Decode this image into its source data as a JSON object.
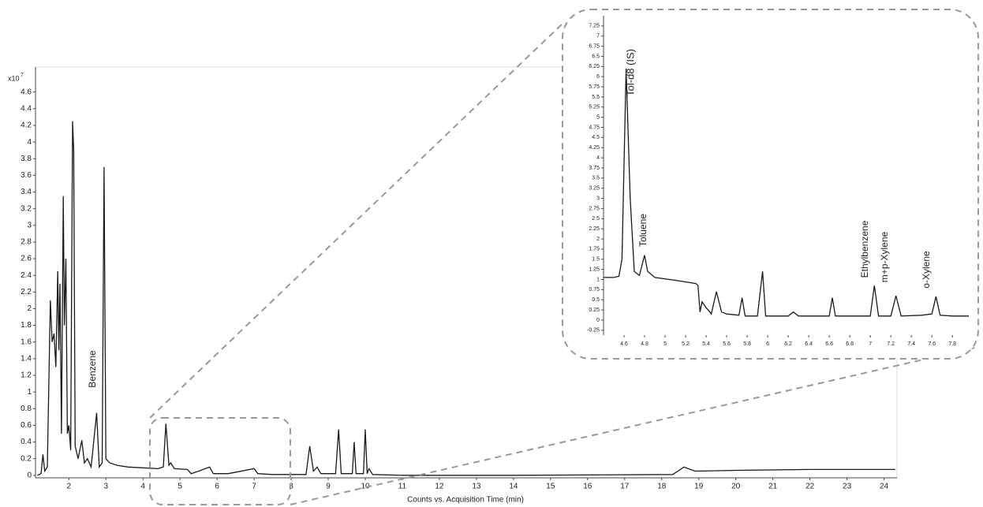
{
  "chart_data": [
    {
      "type": "line",
      "x_label": "Counts vs. Acquisition Time (min)",
      "y_multiplier": "x10",
      "y_multiplier_exponent": "7",
      "color": "#1a1a1a",
      "grid": false,
      "x": [
        1.15,
        1.25,
        1.3,
        1.35,
        1.42,
        1.5,
        1.55,
        1.6,
        1.65,
        1.7,
        1.73,
        1.76,
        1.8,
        1.85,
        1.88,
        1.92,
        1.96,
        2.0,
        2.05,
        2.1,
        2.13,
        2.17,
        2.25,
        2.35,
        2.42,
        2.5,
        2.6,
        2.75,
        2.82,
        2.9,
        2.95,
        3.0,
        3.1,
        3.3,
        3.6,
        4.0,
        4.4,
        4.55,
        4.62,
        4.7,
        4.75,
        4.85,
        5.2,
        5.3,
        5.5,
        5.8,
        5.9,
        6.3,
        7.0,
        7.1,
        7.5,
        8.4,
        8.5,
        8.6,
        8.7,
        8.8,
        9.2,
        9.28,
        9.35,
        9.65,
        9.7,
        9.75,
        9.95,
        10.0,
        10.05,
        10.1,
        10.2,
        11,
        14,
        18.3,
        18.6,
        18.9,
        20,
        22,
        24.3
      ],
      "values": [
        0.0,
        0.02,
        0.25,
        0.05,
        0.1,
        2.1,
        1.6,
        1.7,
        1.3,
        2.45,
        1.5,
        2.3,
        0.5,
        3.35,
        1.8,
        2.6,
        0.5,
        0.6,
        0.3,
        4.25,
        3.9,
        0.35,
        0.2,
        0.42,
        0.15,
        0.2,
        0.1,
        0.75,
        0.1,
        0.15,
        3.7,
        0.2,
        0.15,
        0.12,
        0.1,
        0.09,
        0.08,
        0.1,
        0.62,
        0.12,
        0.15,
        0.08,
        0.07,
        0.02,
        0.05,
        0.1,
        0.02,
        0.02,
        0.08,
        0.02,
        0.01,
        0.01,
        0.35,
        0.05,
        0.1,
        0.02,
        0.02,
        0.55,
        0.02,
        0.02,
        0.4,
        0.02,
        0.02,
        0.55,
        0.02,
        0.08,
        0.01,
        0.0,
        0.0,
        0.01,
        0.1,
        0.05,
        0.06,
        0.07,
        0.07
      ],
      "xlim": [
        1.1,
        24.35
      ],
      "ylim": [
        -0.03,
        4.9
      ],
      "xticks": [
        2,
        3,
        4,
        5,
        6,
        7,
        8,
        9,
        10,
        11,
        12,
        13,
        14,
        15,
        16,
        17,
        18,
        19,
        20,
        21,
        22,
        23,
        24
      ],
      "yticks": [
        0,
        0.2,
        0.4,
        0.6,
        0.8,
        1,
        1.2,
        1.4,
        1.6,
        1.8,
        2,
        2.2,
        2.4,
        2.6,
        2.8,
        3,
        3.2,
        3.4,
        3.6,
        3.8,
        4,
        4.2,
        4.4,
        4.6
      ],
      "annotations": [
        {
          "text": "Benzene",
          "color": "#1a1a1a"
        }
      ]
    },
    {
      "type": "line",
      "color": "#1a1a1a",
      "grid": false,
      "x": [
        4.4,
        4.5,
        4.55,
        4.58,
        4.62,
        4.66,
        4.7,
        4.75,
        4.8,
        4.83,
        4.9,
        5.1,
        5.3,
        5.32,
        5.34,
        5.36,
        5.4,
        5.42,
        5.45,
        5.5,
        5.55,
        5.6,
        5.72,
        5.75,
        5.78,
        5.9,
        5.95,
        5.98,
        6.2,
        6.25,
        6.3,
        6.6,
        6.63,
        6.66,
        7.0,
        7.04,
        7.08,
        7.2,
        7.25,
        7.3,
        7.5,
        7.6,
        7.64,
        7.68,
        7.8,
        7.96
      ],
      "values": [
        1.05,
        1.05,
        1.08,
        1.5,
        6.2,
        3.0,
        1.2,
        1.1,
        1.6,
        1.2,
        1.05,
        0.98,
        0.9,
        0.85,
        0.2,
        0.45,
        0.3,
        0.25,
        0.15,
        0.7,
        0.2,
        0.15,
        0.12,
        0.55,
        0.1,
        0.1,
        1.2,
        0.1,
        0.1,
        0.2,
        0.1,
        0.1,
        0.55,
        0.1,
        0.1,
        0.85,
        0.1,
        0.1,
        0.6,
        0.1,
        0.12,
        0.15,
        0.58,
        0.12,
        0.1,
        0.1
      ],
      "xlim": [
        4.4,
        7.96
      ],
      "ylim": [
        -0.37,
        7.5
      ],
      "xticks": [
        4.6,
        4.8,
        5,
        5.2,
        5.4,
        5.6,
        5.8,
        6,
        6.2,
        6.4,
        6.6,
        6.8,
        7,
        7.2,
        7.4,
        7.6,
        7.8
      ],
      "yticks": [
        -0.25,
        0,
        0.25,
        0.5,
        0.75,
        1,
        1.25,
        1.5,
        1.75,
        2,
        2.25,
        2.5,
        2.75,
        3,
        3.25,
        3.5,
        3.75,
        4,
        4.25,
        4.5,
        4.75,
        5,
        5.25,
        5.5,
        5.75,
        6,
        6.25,
        6.5,
        6.75,
        7,
        7.25
      ],
      "annotations": [
        {
          "text": "Tol-d8 (IS)",
          "color": "#c8403a"
        },
        {
          "text": "Toluene",
          "color": "#1a1a1a"
        },
        {
          "text": "Ethylbenzene",
          "color": "#1a1a1a"
        },
        {
          "text": "m+p-Xylene",
          "color": "#1a1a1a"
        },
        {
          "text": "o-Xylene",
          "color": "#1a1a1a"
        }
      ]
    }
  ]
}
